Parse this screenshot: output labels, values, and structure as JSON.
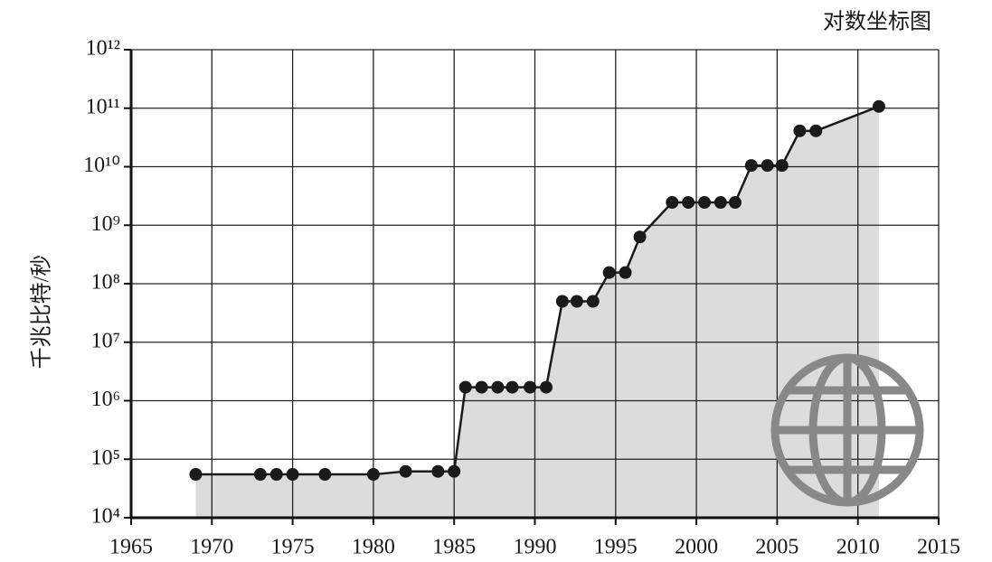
{
  "chart_data": {
    "type": "line",
    "title": "对数坐标图",
    "y_label": "千兆比特/秒",
    "x": [
      1969,
      1973,
      1974,
      1975,
      1977,
      1980,
      1982,
      1984,
      1985,
      1985.7,
      1986.7,
      1987.7,
      1988.6,
      1989.7,
      1990.7,
      1991.7,
      1992.6,
      1993.6,
      1994.6,
      1995.6,
      1996.5,
      1998.5,
      1999.5,
      2000.5,
      2001.5,
      2002.4,
      2003.4,
      2004.4,
      2005.3,
      2006.4,
      2007.4,
      2011.3
    ],
    "series": [
      {
        "color": "#1a1a1a",
        "fill": "#dcdcdc",
        "values": [
          55000,
          55000,
          55000,
          55000,
          55000,
          55000,
          62000,
          62000,
          62000,
          1700000,
          1700000,
          1700000,
          1700000,
          1700000,
          1700000,
          50000000,
          50000000,
          50000000,
          155000000,
          155000000,
          630000000,
          2450000000,
          2450000000,
          2450000000,
          2450000000,
          2450000000,
          10500000000,
          10500000000,
          10500000000,
          41000000000,
          41000000000,
          107000000000
        ]
      }
    ],
    "xlim": [
      1965,
      2015
    ],
    "xticks": [
      1965,
      1970,
      1975,
      1980,
      1985,
      1990,
      1995,
      2000,
      2005,
      2010,
      2015
    ],
    "ylim": [
      10000,
      1000000000000
    ],
    "log_y": true,
    "yticks": [
      {
        "value": 10000,
        "label": "10⁴"
      },
      {
        "value": 100000,
        "label": "10⁵"
      },
      {
        "value": 1000000,
        "label": "10⁶"
      },
      {
        "value": 10000000,
        "label": "10⁷"
      },
      {
        "value": 100000000,
        "label": "10⁸"
      },
      {
        "value": 1000000000,
        "label": "10⁹"
      },
      {
        "value": 10000000000,
        "label": "10¹⁰"
      },
      {
        "value": 100000000000,
        "label": "10¹¹"
      },
      {
        "value": 1000000000000,
        "label": "10¹²"
      }
    ],
    "grid": true
  }
}
